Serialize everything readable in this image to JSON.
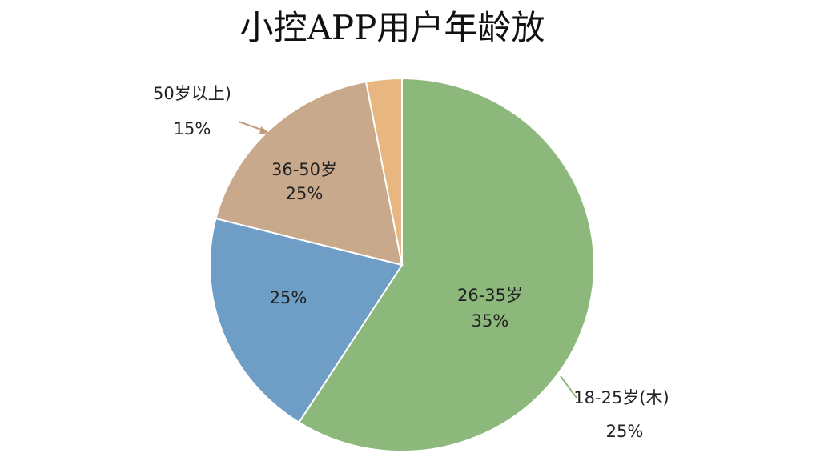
{
  "chart_data": {
    "type": "pie",
    "title": "小控APP用户年龄放",
    "categories": [
      null,
      null,
      null,
      null
    ],
    "values": [
      59,
      20,
      18,
      3
    ],
    "colors": [
      "#8db87c",
      "#6e9ec6",
      "#c9a98b",
      "#e8b680"
    ],
    "annotations": [
      "50岁以上)",
      "15%",
      "36-50岁",
      "25%",
      "25%",
      "26-35岁",
      "35%",
      "18-25岁(木)",
      "25%"
    ]
  }
}
